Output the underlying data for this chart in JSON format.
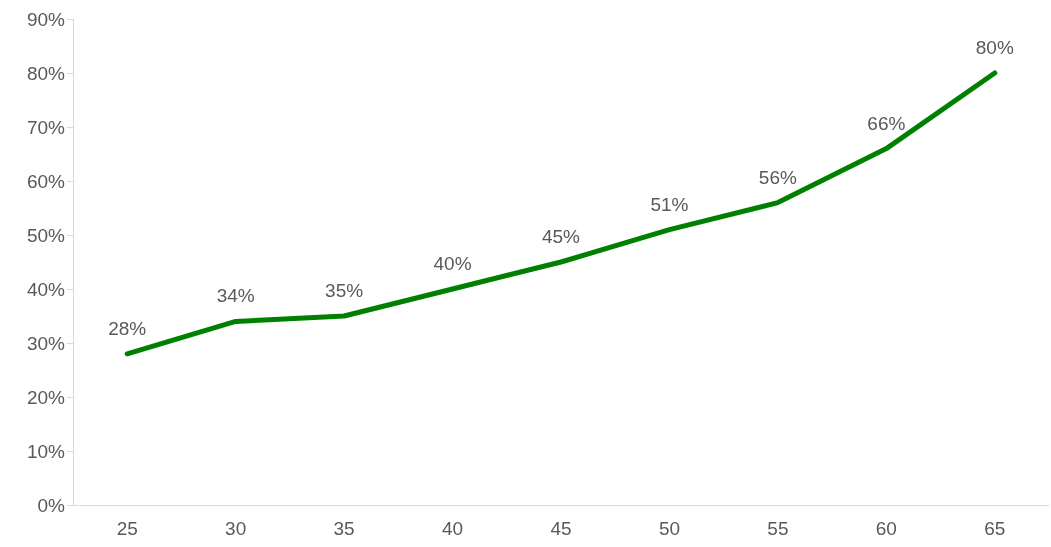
{
  "chart_data": {
    "type": "line",
    "categories": [
      "25",
      "30",
      "35",
      "40",
      "45",
      "50",
      "55",
      "60",
      "65"
    ],
    "series": [
      {
        "color": "#008000",
        "values": [
          28,
          34,
          35,
          40,
          45,
          51,
          56,
          66,
          80
        ],
        "value_labels": [
          "28%",
          "34%",
          "35%",
          "40%",
          "45%",
          "51%",
          "56%",
          "66%",
          "80%"
        ]
      }
    ],
    "ylim": [
      0,
      90
    ],
    "yticks": [
      {
        "value": 0,
        "label": "0%"
      },
      {
        "value": 10,
        "label": "10%"
      },
      {
        "value": 20,
        "label": "20%"
      },
      {
        "value": 30,
        "label": "30%"
      },
      {
        "value": 40,
        "label": "40%"
      },
      {
        "value": 50,
        "label": "50%"
      },
      {
        "value": 60,
        "label": "60%"
      },
      {
        "value": 70,
        "label": "70%"
      },
      {
        "value": 80,
        "label": "80%"
      },
      {
        "value": 90,
        "label": "90%"
      }
    ],
    "grid": false,
    "marker": "none",
    "line_style": "solid"
  }
}
